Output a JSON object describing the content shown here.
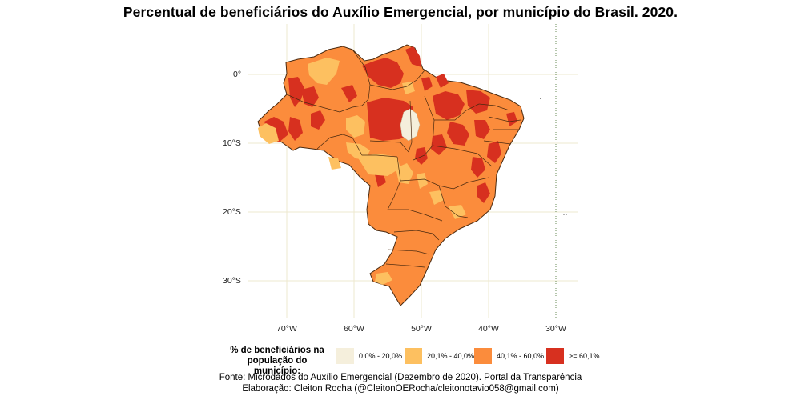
{
  "title": "Percentual de beneficiários do Auxílio Emergencial, por município do Brasil. 2020.",
  "axes": {
    "lat_labels": [
      "0°",
      "10°S",
      "20°S",
      "30°S"
    ],
    "lon_labels": [
      "70°W",
      "60°W",
      "50°W",
      "40°W",
      "30°W"
    ]
  },
  "legend": {
    "title_line1": "% de beneficiários na",
    "title_line2": "população do município:",
    "items": [
      {
        "label": "0,0% - 20,0%",
        "color": "#f5efdc"
      },
      {
        "label": "20,1% - 40,0%",
        "color": "#fdc060"
      },
      {
        "label": "40,1% - 60,0%",
        "color": "#fb8c3c"
      },
      {
        "label": ">= 60,1%",
        "color": "#d7301f"
      }
    ]
  },
  "source_line1": "Fonte: Microdados do Auxílio Emergencial (Dezembro de 2020). Portal da Transparência",
  "source_line2": "Elaboração: Cleiton Rocha (@CleitonOERocha/cleitonotavio058@gmail.com)",
  "colors": {
    "grid": "#ede8cf",
    "border": "#4a2a10",
    "map_base": "#fb8c3c"
  }
}
